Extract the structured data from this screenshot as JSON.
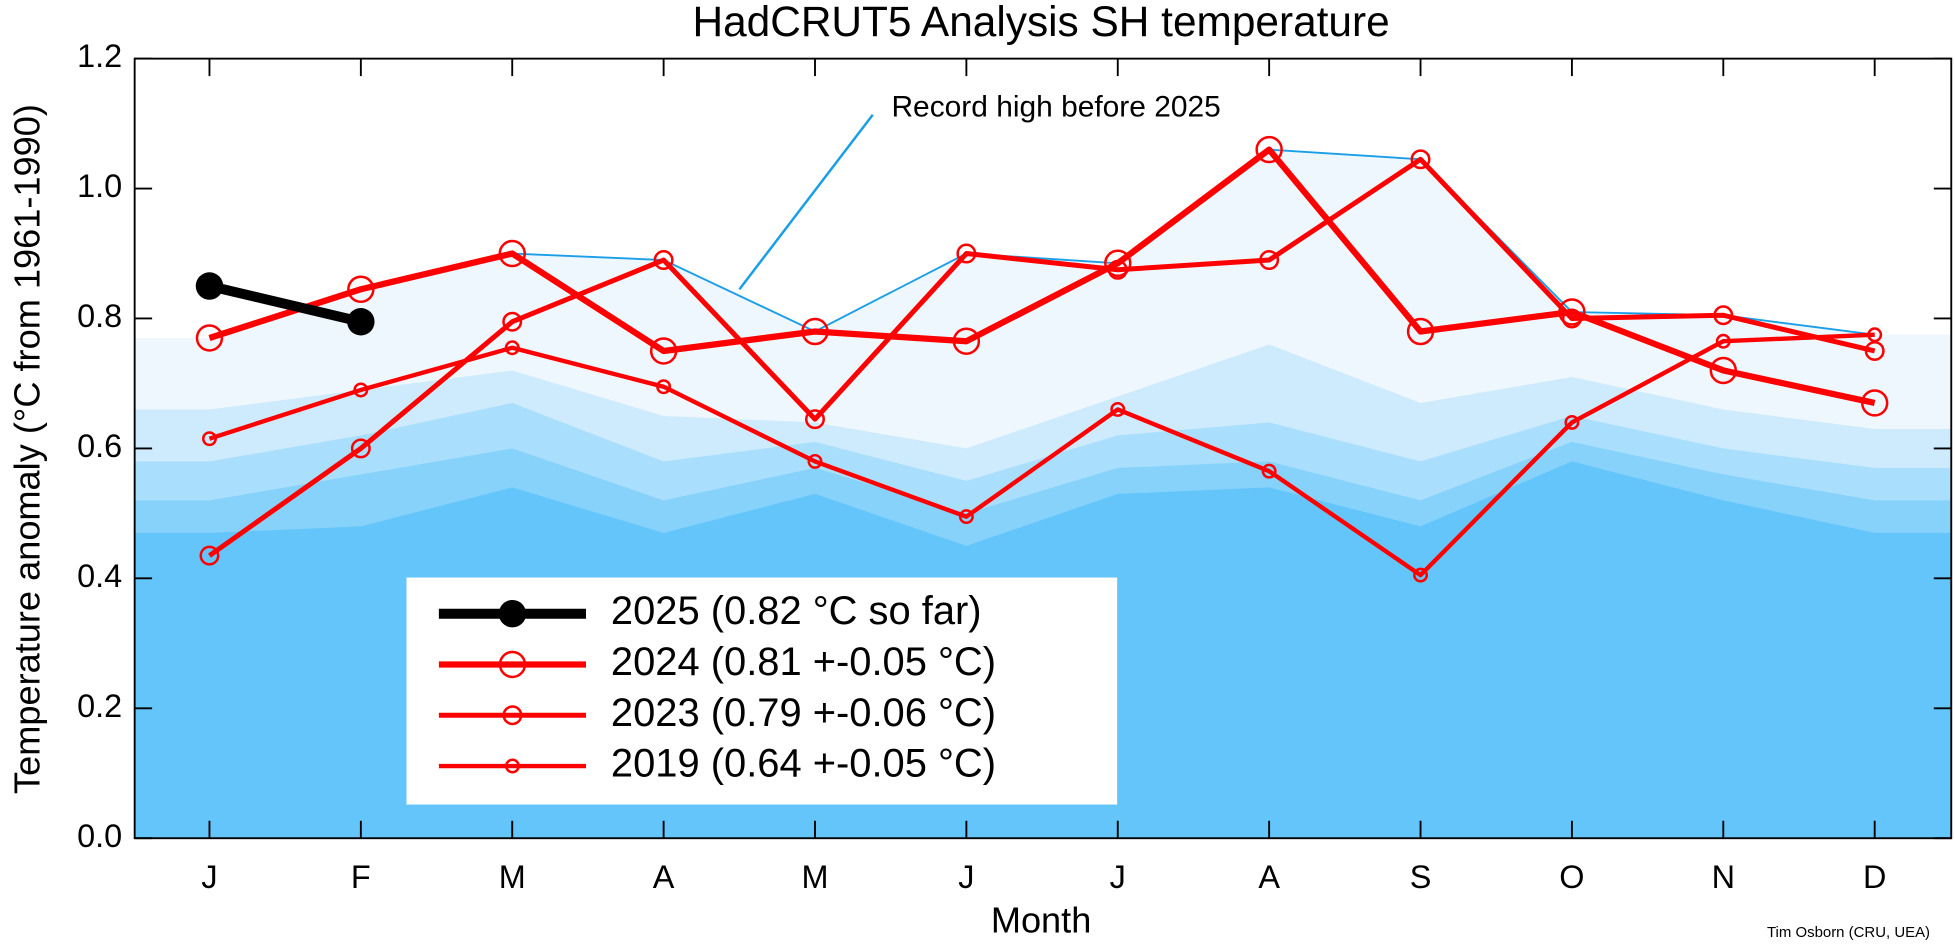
{
  "chart_data": {
    "type": "line",
    "title": "HadCRUT5 Analysis SH temperature",
    "xlabel": "Month",
    "ylabel": "Temperature anomaly (°C from 1961-1990)",
    "annotation": "Record high before 2025",
    "credit": "Tim Osborn (CRU, UEA)",
    "categories": [
      "J",
      "F",
      "M",
      "A",
      "M",
      "J",
      "J",
      "A",
      "S",
      "O",
      "N",
      "D"
    ],
    "ylim": [
      0,
      1.2
    ],
    "yticks": [
      {
        "value": 0,
        "label": "0.0"
      },
      0.2,
      0.4,
      0.6,
      0.8,
      {
        "value": 1,
        "label": "1.0"
      },
      1.2
    ],
    "record": {
      "color": "#1a9ee8",
      "fill": "#eef7fd",
      "values": [
        0.77,
        0.845,
        0.9,
        0.89,
        0.78,
        0.9,
        0.885,
        1.06,
        1.045,
        0.81,
        0.805,
        0.775
      ]
    },
    "bands": [
      {
        "color": "#cdebfd",
        "values": [
          0.66,
          0.69,
          0.72,
          0.65,
          0.64,
          0.6,
          0.68,
          0.76,
          0.67,
          0.71,
          0.66,
          0.63
        ]
      },
      {
        "color": "#a9dffc",
        "values": [
          0.58,
          0.62,
          0.67,
          0.58,
          0.61,
          0.55,
          0.62,
          0.64,
          0.58,
          0.65,
          0.6,
          0.57
        ]
      },
      {
        "color": "#86d2fb",
        "values": [
          0.52,
          0.56,
          0.6,
          0.52,
          0.57,
          0.5,
          0.57,
          0.58,
          0.52,
          0.61,
          0.56,
          0.52
        ]
      },
      {
        "color": "#63c5fa",
        "values": [
          0.47,
          0.48,
          0.54,
          0.47,
          0.53,
          0.45,
          0.53,
          0.54,
          0.48,
          0.58,
          0.52,
          0.47
        ]
      }
    ],
    "series": [
      {
        "name": "2025 (0.82 °C so far)",
        "color": "#000000",
        "values": [
          0.85,
          0.795,
          null,
          null,
          null,
          null,
          null,
          null,
          null,
          null,
          null,
          null
        ]
      },
      {
        "name": "2024 (0.81 +-0.05 °C)",
        "color": "#ff0000",
        "values": [
          0.77,
          0.845,
          0.9,
          0.75,
          0.78,
          0.765,
          0.885,
          1.06,
          0.78,
          0.81,
          0.72,
          0.67
        ]
      },
      {
        "name": "2023 (0.79 +-0.06 °C)",
        "color": "#ff0000",
        "values": [
          0.435,
          0.6,
          0.795,
          0.89,
          0.645,
          0.9,
          0.875,
          0.89,
          1.045,
          0.8,
          0.805,
          0.75
        ]
      },
      {
        "name": "2019 (0.64 +-0.05 °C)",
        "color": "#ff0000",
        "values": [
          0.615,
          0.69,
          0.755,
          0.695,
          0.58,
          0.495,
          0.66,
          0.565,
          0.405,
          0.64,
          0.765,
          0.775
        ]
      }
    ]
  }
}
